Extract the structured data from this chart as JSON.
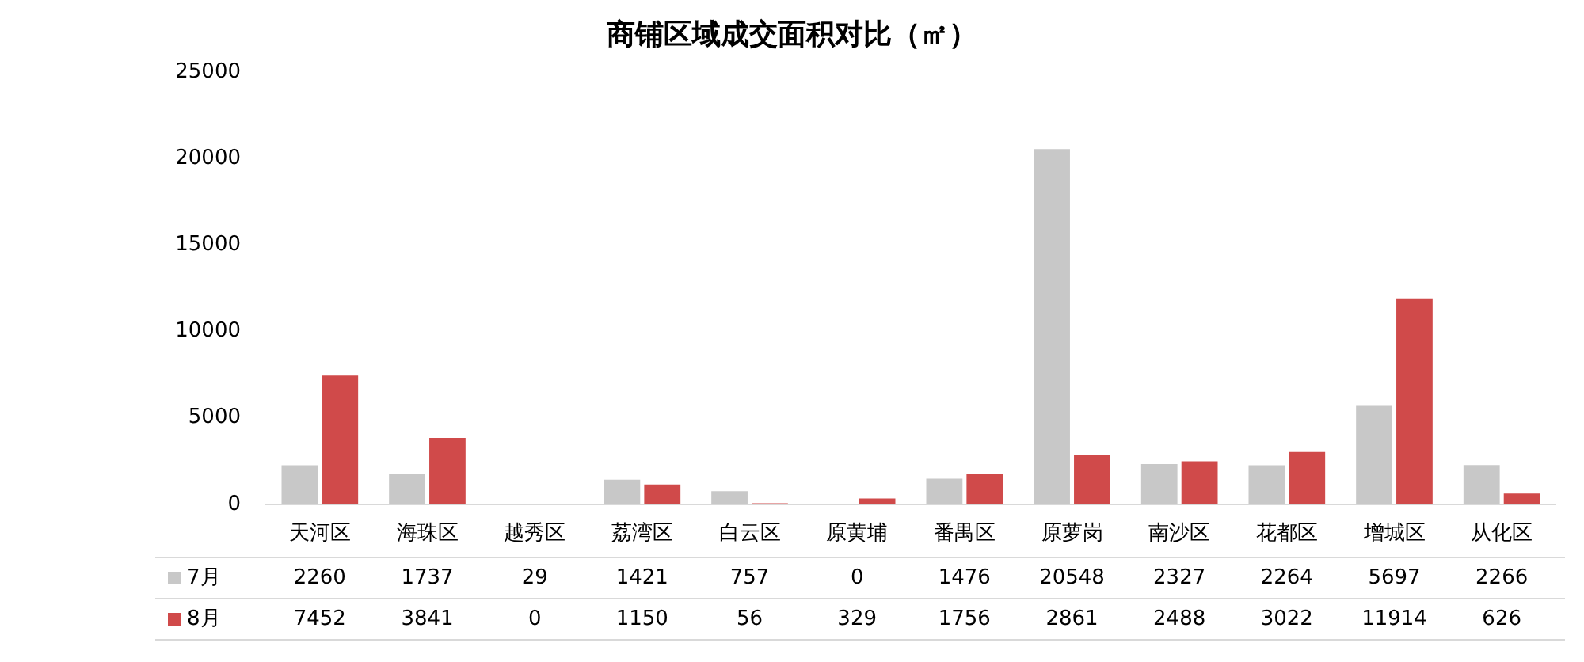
{
  "chart_data": {
    "type": "bar",
    "title": "商铺区域成交面积对比（㎡）",
    "categories": [
      "天河区",
      "海珠区",
      "越秀区",
      "荔湾区",
      "白云区",
      "原黄埔",
      "番禺区",
      "原萝岗",
      "南沙区",
      "花都区",
      "增城区",
      "从化区"
    ],
    "series": [
      {
        "name": "7月",
        "color": "#c8c8c8",
        "values": [
          2260,
          1737,
          29,
          1421,
          757,
          0,
          1476,
          20548,
          2327,
          2264,
          5697,
          2266
        ]
      },
      {
        "name": "8月",
        "color": "#d04a4a",
        "values": [
          7452,
          3841,
          0,
          1150,
          56,
          329,
          1756,
          2861,
          2488,
          3022,
          11914,
          626
        ]
      }
    ],
    "ylim": [
      0,
      25000
    ],
    "yticks": [
      0,
      5000,
      10000,
      15000,
      20000,
      25000
    ],
    "grid": false,
    "legend": "bottom",
    "data_labels": true
  }
}
